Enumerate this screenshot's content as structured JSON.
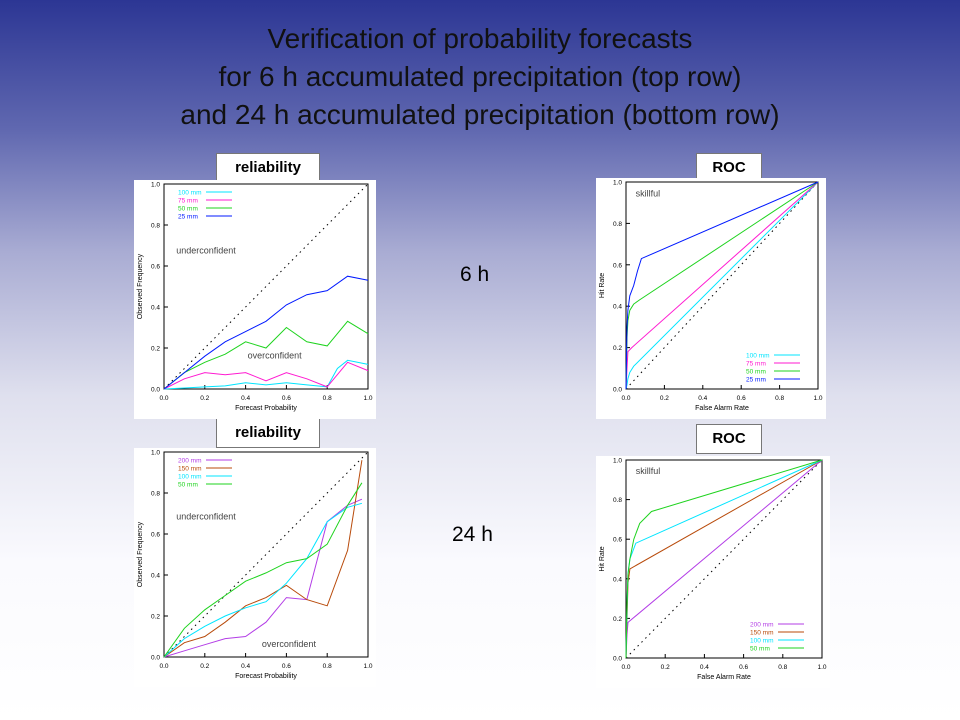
{
  "title": {
    "line1": "Verification of probability forecasts",
    "line2": "for 6 h accumulated precipitation (top row)",
    "line3": "and 24 h accumulated precipitation (bottom row)"
  },
  "row_labels": {
    "top": "6 h",
    "bottom": "24 h"
  },
  "panel_labels": {
    "rel_top": "reliability",
    "roc_top": "ROC",
    "rel_bottom": "reliability",
    "roc_bottom": "ROC"
  },
  "colors": {
    "cyan": "#00e5ff",
    "magenta": "#ff1ad1",
    "green": "#1ed31e",
    "blue": "#0019ff",
    "violet": "#b33de6",
    "brown": "#b84a0a"
  },
  "chart_data": [
    {
      "id": "rel_top",
      "type": "line",
      "xlabel": "Forecast Probability",
      "ylabel": "Observed Frequency",
      "xlim": [
        0,
        1
      ],
      "ylim": [
        0,
        1
      ],
      "xticks": [
        "0.0",
        "0.2",
        "0.4",
        "0.6",
        "0.8",
        "1.0"
      ],
      "yticks": [
        "0.0",
        "0.2",
        "0.4",
        "0.6",
        "0.8",
        "1.0"
      ],
      "annotations": [
        {
          "text": "underconfident",
          "x": 0.06,
          "y": 0.66
        },
        {
          "text": "overconfident",
          "x": 0.41,
          "y": 0.15
        }
      ],
      "series": [
        {
          "name": "100 mm",
          "color": "#00e5ff",
          "x": [
            0,
            0.1,
            0.2,
            0.3,
            0.4,
            0.5,
            0.6,
            0.7,
            0.8,
            0.85,
            0.9,
            1.0
          ],
          "y": [
            0,
            0.005,
            0.01,
            0.015,
            0.03,
            0.02,
            0.03,
            0.02,
            0.01,
            0.1,
            0.14,
            0.12
          ]
        },
        {
          "name": "75 mm",
          "color": "#ff1ad1",
          "x": [
            0,
            0.1,
            0.2,
            0.3,
            0.4,
            0.5,
            0.6,
            0.7,
            0.8,
            0.9,
            1.0
          ],
          "y": [
            0,
            0.05,
            0.08,
            0.07,
            0.08,
            0.04,
            0.08,
            0.05,
            0.01,
            0.13,
            0.09
          ]
        },
        {
          "name": "50 mm",
          "color": "#1ed31e",
          "x": [
            0,
            0.1,
            0.2,
            0.3,
            0.4,
            0.5,
            0.6,
            0.7,
            0.8,
            0.9,
            1.0
          ],
          "y": [
            0,
            0.08,
            0.13,
            0.17,
            0.23,
            0.2,
            0.3,
            0.23,
            0.21,
            0.33,
            0.27
          ]
        },
        {
          "name": "25 mm",
          "color": "#0019ff",
          "x": [
            0,
            0.1,
            0.2,
            0.3,
            0.4,
            0.5,
            0.6,
            0.7,
            0.8,
            0.9,
            1.0
          ],
          "y": [
            0,
            0.08,
            0.16,
            0.23,
            0.28,
            0.33,
            0.41,
            0.46,
            0.48,
            0.55,
            0.53
          ]
        }
      ]
    },
    {
      "id": "roc_top",
      "type": "line",
      "xlabel": "False Alarm Rate",
      "ylabel": "Hit Rate",
      "xlim": [
        0,
        1
      ],
      "ylim": [
        0,
        1
      ],
      "xticks": [
        "0.0",
        "0.2",
        "0.4",
        "0.6",
        "0.8",
        "1.0"
      ],
      "yticks": [
        "0.0",
        "0.2",
        "0.4",
        "0.6",
        "0.8",
        "1.0"
      ],
      "annotations": [
        {
          "text": "skillful",
          "x": 0.05,
          "y": 0.93
        }
      ],
      "series": [
        {
          "name": "100 mm",
          "color": "#00e5ff",
          "x": [
            0,
            0.005,
            0.01,
            0.02,
            0.04,
            1.0
          ],
          "y": [
            0,
            0.02,
            0.05,
            0.08,
            0.11,
            1.0
          ]
        },
        {
          "name": "75 mm",
          "color": "#ff1ad1",
          "x": [
            0,
            0.005,
            0.01,
            0.03,
            1.0
          ],
          "y": [
            0,
            0.1,
            0.18,
            0.2,
            1.0
          ]
        },
        {
          "name": "50 mm",
          "color": "#1ed31e",
          "x": [
            0,
            0.005,
            0.01,
            0.02,
            0.04,
            0.07,
            1.0
          ],
          "y": [
            0,
            0.25,
            0.33,
            0.38,
            0.41,
            0.43,
            1.0
          ]
        },
        {
          "name": "25 mm",
          "color": "#0019ff",
          "x": [
            0,
            0.005,
            0.01,
            0.02,
            0.04,
            0.06,
            0.08,
            1.0
          ],
          "y": [
            0,
            0.3,
            0.38,
            0.45,
            0.5,
            0.57,
            0.63,
            1.0
          ]
        }
      ]
    },
    {
      "id": "rel_bottom",
      "type": "line",
      "xlabel": "Forecast Probability",
      "ylabel": "Observed Frequency",
      "xlim": [
        0,
        1
      ],
      "ylim": [
        0,
        1
      ],
      "xticks": [
        "0.0",
        "0.2",
        "0.4",
        "0.6",
        "0.8",
        "1.0"
      ],
      "yticks": [
        "0.0",
        "0.2",
        "0.4",
        "0.6",
        "0.8",
        "1.0"
      ],
      "annotations": [
        {
          "text": "underconfident",
          "x": 0.06,
          "y": 0.67
        },
        {
          "text": "overconfident",
          "x": 0.48,
          "y": 0.05
        }
      ],
      "series": [
        {
          "name": "200 mm",
          "color": "#b33de6",
          "x": [
            0,
            0.1,
            0.2,
            0.3,
            0.4,
            0.5,
            0.6,
            0.7,
            0.8,
            0.9,
            0.97
          ],
          "y": [
            0,
            0.03,
            0.06,
            0.09,
            0.1,
            0.17,
            0.29,
            0.28,
            0.66,
            0.74,
            0.77
          ]
        },
        {
          "name": "150 mm",
          "color": "#b84a0a",
          "x": [
            0,
            0.1,
            0.2,
            0.3,
            0.4,
            0.5,
            0.6,
            0.7,
            0.8,
            0.9,
            0.97
          ],
          "y": [
            0,
            0.07,
            0.1,
            0.17,
            0.25,
            0.29,
            0.35,
            0.28,
            0.25,
            0.52,
            0.96
          ]
        },
        {
          "name": "100 mm",
          "color": "#00e5ff",
          "x": [
            0,
            0.1,
            0.2,
            0.3,
            0.4,
            0.5,
            0.6,
            0.7,
            0.8,
            0.9,
            0.97
          ],
          "y": [
            0,
            0.09,
            0.15,
            0.2,
            0.24,
            0.27,
            0.36,
            0.48,
            0.66,
            0.73,
            0.75
          ]
        },
        {
          "name": "50 mm",
          "color": "#1ed31e",
          "x": [
            0,
            0.1,
            0.2,
            0.3,
            0.4,
            0.5,
            0.6,
            0.7,
            0.8,
            0.9,
            0.97
          ],
          "y": [
            0,
            0.14,
            0.23,
            0.3,
            0.37,
            0.41,
            0.46,
            0.48,
            0.55,
            0.74,
            0.85
          ]
        }
      ]
    },
    {
      "id": "roc_bottom",
      "type": "line",
      "xlabel": "False Alarm Rate",
      "ylabel": "Hit Rate",
      "xlim": [
        0,
        1
      ],
      "ylim": [
        0,
        1
      ],
      "xticks": [
        "0.0",
        "0.2",
        "0.4",
        "0.6",
        "0.8",
        "1.0"
      ],
      "yticks": [
        "0.0",
        "0.2",
        "0.4",
        "0.6",
        "0.8",
        "1.0"
      ],
      "annotations": [
        {
          "text": "skillful",
          "x": 0.05,
          "y": 0.93
        }
      ],
      "series": [
        {
          "name": "200 mm",
          "color": "#b33de6",
          "x": [
            0,
            0.005,
            0.01,
            1.0
          ],
          "y": [
            0,
            0.12,
            0.18,
            1.0
          ]
        },
        {
          "name": "150 mm",
          "color": "#b84a0a",
          "x": [
            0,
            0.005,
            0.01,
            0.02,
            1.0
          ],
          "y": [
            0,
            0.2,
            0.38,
            0.45,
            1.0
          ]
        },
        {
          "name": "100 mm",
          "color": "#00e5ff",
          "x": [
            0,
            0.005,
            0.01,
            0.02,
            0.05,
            1.0
          ],
          "y": [
            0,
            0.25,
            0.43,
            0.5,
            0.58,
            1.0
          ]
        },
        {
          "name": "50 mm",
          "color": "#1ed31e",
          "x": [
            0,
            0.005,
            0.01,
            0.02,
            0.04,
            0.07,
            0.13,
            1.0
          ],
          "y": [
            0,
            0.28,
            0.42,
            0.5,
            0.6,
            0.68,
            0.74,
            1.0
          ]
        }
      ]
    }
  ]
}
